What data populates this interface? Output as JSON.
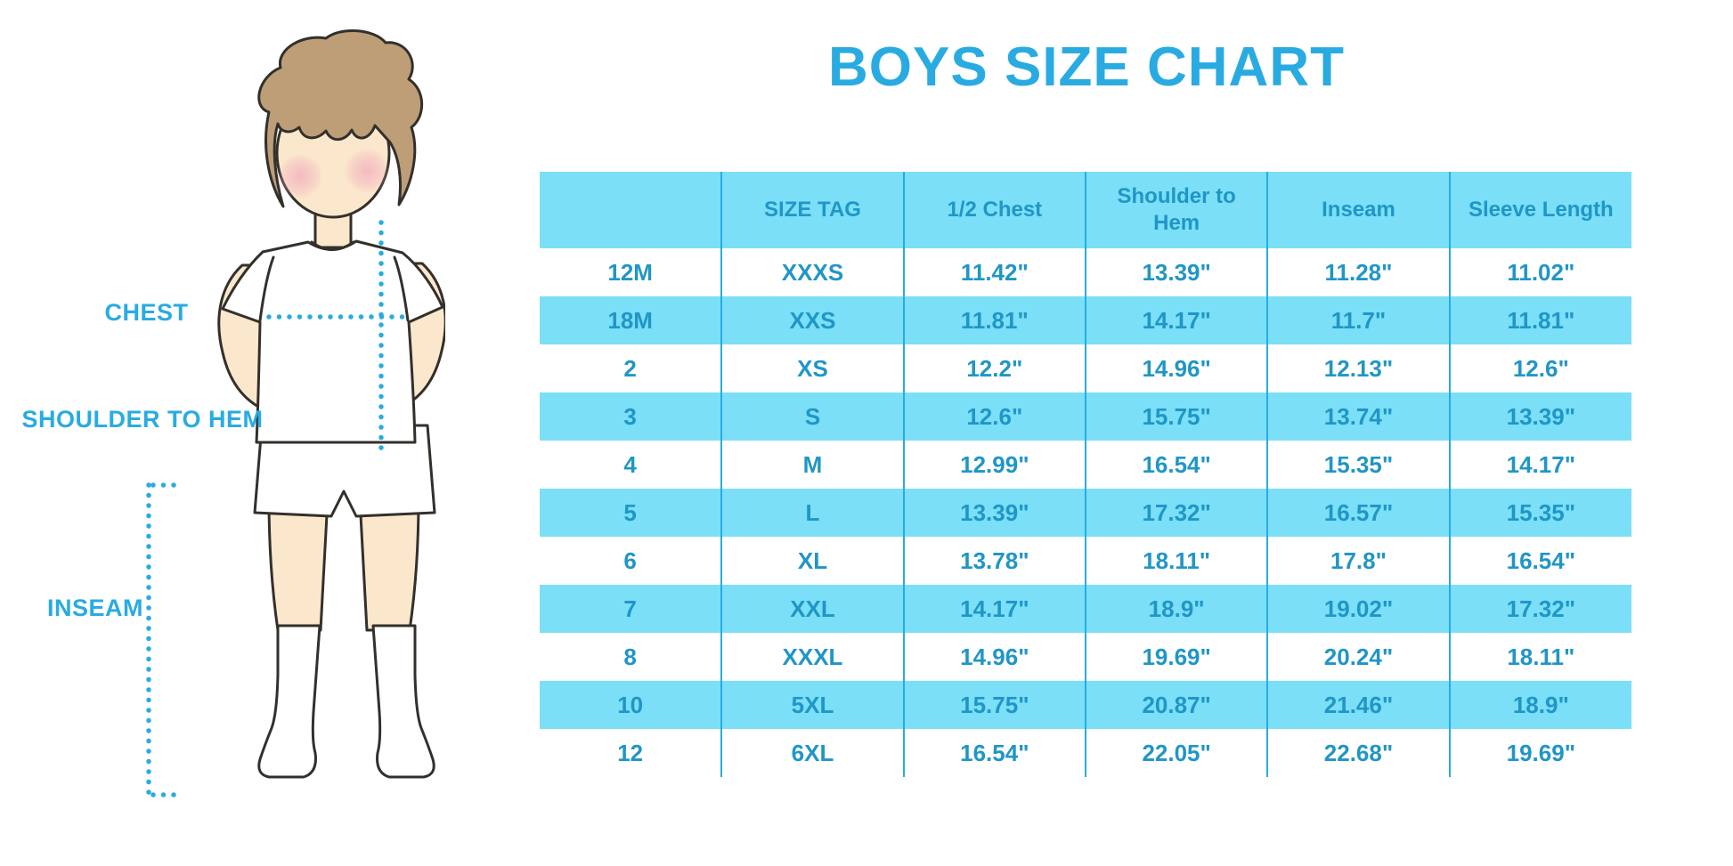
{
  "title": "BOYS SIZE CHART",
  "colors": {
    "accent_blue": "#29ABE2",
    "table_stripe": "#7ADFF7",
    "table_text": "#2096C6",
    "skin": "#FBE8CC",
    "hair": "#BD9E77",
    "blush": "#F2AFBE",
    "outline": "#33302C"
  },
  "figure": {
    "labels": {
      "chest": "CHEST",
      "shoulder_to_hem": "SHOULDER TO HEM",
      "inseam": "INSEAM"
    }
  },
  "chart_data": {
    "type": "table",
    "title": "BOYS SIZE CHART",
    "columns": [
      "",
      "SIZE TAG",
      "1/2 Chest",
      "Shoulder to Hem",
      "Inseam",
      "Sleeve Length"
    ],
    "rows": [
      [
        "12M",
        "XXXS",
        "11.42\"",
        "13.39\"",
        "11.28\"",
        "11.02\""
      ],
      [
        "18M",
        "XXS",
        "11.81\"",
        "14.17\"",
        "11.7\"",
        "11.81\""
      ],
      [
        "2",
        "XS",
        "12.2\"",
        "14.96\"",
        "12.13\"",
        "12.6\""
      ],
      [
        "3",
        "S",
        "12.6\"",
        "15.75\"",
        "13.74\"",
        "13.39\""
      ],
      [
        "4",
        "M",
        "12.99\"",
        "16.54\"",
        "15.35\"",
        "14.17\""
      ],
      [
        "5",
        "L",
        "13.39\"",
        "17.32\"",
        "16.57\"",
        "15.35\""
      ],
      [
        "6",
        "XL",
        "13.78\"",
        "18.11\"",
        "17.8\"",
        "16.54\""
      ],
      [
        "7",
        "XXL",
        "14.17\"",
        "18.9\"",
        "19.02\"",
        "17.32\""
      ],
      [
        "8",
        "XXXL",
        "14.96\"",
        "19.69\"",
        "20.24\"",
        "18.11\""
      ],
      [
        "10",
        "5XL",
        "15.75\"",
        "20.87\"",
        "21.46\"",
        "18.9\""
      ],
      [
        "12",
        "6XL",
        "16.54\"",
        "22.05\"",
        "22.68\"",
        "19.69\""
      ]
    ]
  }
}
